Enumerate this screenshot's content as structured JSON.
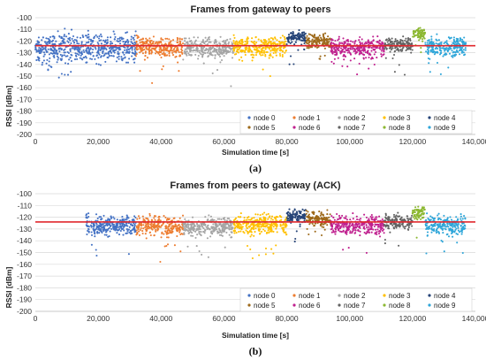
{
  "chart_data": [
    {
      "type": "scatter",
      "panel_label": "(a)",
      "title": "Frames from gateway to peers",
      "xlabel": "Simulation time [s]",
      "ylabel": "RSSI [dBm]",
      "xlim": [
        0,
        140000
      ],
      "ylim": [
        -200,
        -100
      ],
      "xticks": [
        "0",
        "20,000",
        "40,000",
        "60,000",
        "80,000",
        "100,000",
        "120,000",
        "140,000"
      ],
      "yticks": [
        "-100",
        "-110",
        "-120",
        "-130",
        "-140",
        "-150",
        "-160",
        "-170",
        "-180",
        "-190",
        "-200"
      ],
      "grid": "horizontal",
      "legend_position": "bottom-right",
      "threshold_line": {
        "y": -124,
        "color": "#e0282e"
      },
      "series": [
        {
          "name": "node 0",
          "color": "#4472c4",
          "x_range": [
            0,
            32000
          ],
          "y_mean": -126,
          "y_spread": 18,
          "extra_start": 16000
        },
        {
          "name": "node 1",
          "color": "#ed7d31",
          "x_range": [
            32000,
            47000
          ],
          "y_mean": -125,
          "y_spread": 12
        },
        {
          "name": "node 2",
          "color": "#a5a5a5",
          "x_range": [
            47000,
            63000
          ],
          "y_mean": -126,
          "y_spread": 12
        },
        {
          "name": "node 3",
          "color": "#ffc000",
          "x_range": [
            63000,
            80000
          ],
          "y_mean": -125,
          "y_spread": 12
        },
        {
          "name": "node 4",
          "color": "#264478",
          "x_range": [
            80000,
            86000
          ],
          "y_mean": -117,
          "y_spread": 8
        },
        {
          "name": "node 5",
          "color": "#9e6a1b",
          "x_range": [
            86000,
            94000
          ],
          "y_mean": -120,
          "y_spread": 9
        },
        {
          "name": "node 6",
          "color": "#c0208f",
          "x_range": [
            94000,
            111000
          ],
          "y_mean": -126,
          "y_spread": 12
        },
        {
          "name": "node 7",
          "color": "#636363",
          "x_range": [
            111000,
            120000
          ],
          "y_mean": -123,
          "y_spread": 9
        },
        {
          "name": "node 8",
          "color": "#8cb832",
          "x_range": [
            120000,
            124000
          ],
          "y_mean": -114,
          "y_spread": 8
        },
        {
          "name": "node 9",
          "color": "#2fa6d9",
          "x_range": [
            124000,
            137000
          ],
          "y_mean": -125,
          "y_spread": 12
        }
      ]
    },
    {
      "type": "scatter",
      "panel_label": "(b)",
      "title": "Frames from peers to gateway (ACK)",
      "xlabel": "Simulation time [s]",
      "ylabel": "RSSI [dBm]",
      "xlim": [
        0,
        140000
      ],
      "ylim": [
        -200,
        -100
      ],
      "xticks": [
        "0",
        "20,000",
        "40,000",
        "60,000",
        "80,000",
        "100,000",
        "120,000",
        "140,000"
      ],
      "yticks": [
        "-100",
        "-110",
        "-120",
        "-130",
        "-140",
        "-150",
        "-160",
        "-170",
        "-180",
        "-190",
        "-200"
      ],
      "grid": "horizontal",
      "legend_position": "bottom-right",
      "threshold_line": {
        "y": -124,
        "color": "#e0282e"
      },
      "series": [
        {
          "name": "node 0",
          "color": "#4472c4",
          "x_range": [
            16000,
            32000
          ],
          "y_mean": -127,
          "y_spread": 12
        },
        {
          "name": "node 1",
          "color": "#ed7d31",
          "x_range": [
            32000,
            47000
          ],
          "y_mean": -127,
          "y_spread": 12
        },
        {
          "name": "node 2",
          "color": "#a5a5a5",
          "x_range": [
            47000,
            63000
          ],
          "y_mean": -128,
          "y_spread": 12
        },
        {
          "name": "node 3",
          "color": "#ffc000",
          "x_range": [
            63000,
            80000
          ],
          "y_mean": -126,
          "y_spread": 12
        },
        {
          "name": "node 4",
          "color": "#264478",
          "x_range": [
            80000,
            86000
          ],
          "y_mean": -119,
          "y_spread": 8
        },
        {
          "name": "node 5",
          "color": "#9e6a1b",
          "x_range": [
            86000,
            94000
          ],
          "y_mean": -122,
          "y_spread": 9
        },
        {
          "name": "node 6",
          "color": "#c0208f",
          "x_range": [
            94000,
            111000
          ],
          "y_mean": -127,
          "y_spread": 12
        },
        {
          "name": "node 7",
          "color": "#636363",
          "x_range": [
            111000,
            120000
          ],
          "y_mean": -124,
          "y_spread": 9
        },
        {
          "name": "node 8",
          "color": "#8cb832",
          "x_range": [
            120000,
            124000
          ],
          "y_mean": -116,
          "y_spread": 8
        },
        {
          "name": "node 9",
          "color": "#2fa6d9",
          "x_range": [
            124000,
            137000
          ],
          "y_mean": -127,
          "y_spread": 12
        }
      ]
    }
  ]
}
